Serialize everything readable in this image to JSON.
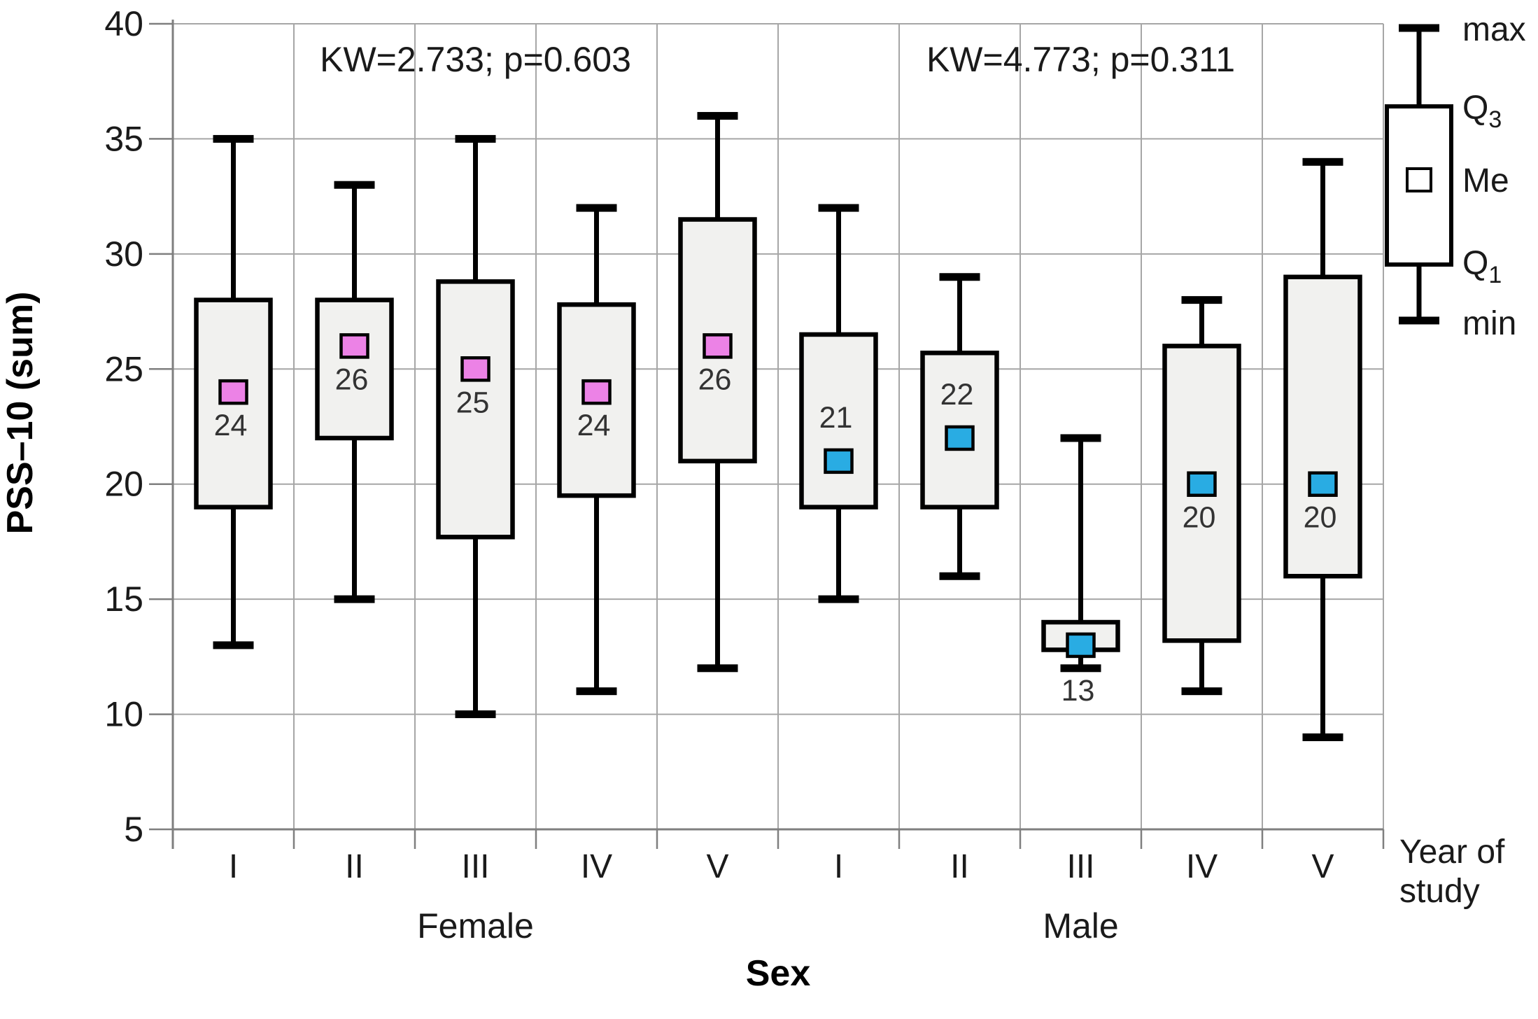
{
  "figure": {
    "y_axis": {
      "label": "PSS–10 (sum)",
      "ticks": [
        40,
        35,
        30,
        25,
        20,
        15,
        10,
        5
      ],
      "min": 5,
      "max": 40
    },
    "x_axis": {
      "title": "Sex",
      "right_label_line1": "Year of",
      "right_label_line2": "study",
      "year_ticks": [
        "I",
        "II",
        "III",
        "IV",
        "V"
      ]
    },
    "legend": {
      "items": [
        {
          "text": "max",
          "sub": ""
        },
        {
          "text": "Q",
          "sub": "3"
        },
        {
          "text": "Me",
          "sub": ""
        },
        {
          "text": "Q",
          "sub": "1"
        },
        {
          "text": "min",
          "sub": ""
        }
      ]
    },
    "colors": {
      "female_marker": "#EC82E6",
      "male_marker": "#29ACE3",
      "box_fill": "#F1F1EF",
      "legend_box_fill": "#FFFFFF",
      "grid": "#A6A6A6",
      "axis": "#7F7F7F",
      "ink": "#1A1A1A",
      "median_label": "#333333"
    }
  },
  "chart_data": {
    "type": "box",
    "title": "",
    "xlabel": "Sex",
    "ylabel": "PSS–10 (sum)",
    "ylim": [
      5,
      40
    ],
    "grid": true,
    "legend_position": "right",
    "categories": [
      "Female I",
      "Female II",
      "Female III",
      "Female IV",
      "Female V",
      "Male I",
      "Male II",
      "Male III",
      "Male IV",
      "Male V"
    ],
    "groups": [
      {
        "name": "Female",
        "annotation": "KW=2.733; p=0.603",
        "columns": [
          0,
          1,
          2,
          3,
          4
        ]
      },
      {
        "name": "Male",
        "annotation": "KW=4.773; p=0.311",
        "columns": [
          5,
          6,
          7,
          8,
          9
        ]
      }
    ],
    "series": [
      {
        "group": "Female",
        "year": "I",
        "min": 13,
        "q1": 19,
        "median": 24,
        "q3": 28,
        "max": 35,
        "median_label": "24",
        "label_pos": "below"
      },
      {
        "group": "Female",
        "year": "II",
        "min": 15,
        "q1": 22,
        "median": 26,
        "q3": 28,
        "max": 33,
        "median_label": "26",
        "label_pos": "below"
      },
      {
        "group": "Female",
        "year": "III",
        "min": 10,
        "q1": 17.7,
        "median": 25,
        "q3": 28.8,
        "max": 35,
        "median_label": "25",
        "label_pos": "below"
      },
      {
        "group": "Female",
        "year": "IV",
        "min": 11,
        "q1": 19.5,
        "median": 24,
        "q3": 27.8,
        "max": 32,
        "median_label": "24",
        "label_pos": "below"
      },
      {
        "group": "Female",
        "year": "V",
        "min": 12,
        "q1": 21,
        "median": 26,
        "q3": 31.5,
        "max": 36,
        "median_label": "26",
        "label_pos": "below"
      },
      {
        "group": "Male",
        "year": "I",
        "min": 15,
        "q1": 19,
        "median": 21,
        "q3": 26.5,
        "max": 32,
        "median_label": "21",
        "label_pos": "above"
      },
      {
        "group": "Male",
        "year": "II",
        "min": 16,
        "q1": 19,
        "median": 22,
        "q3": 25.7,
        "max": 29,
        "median_label": "22",
        "label_pos": "above"
      },
      {
        "group": "Male",
        "year": "III",
        "min": 12,
        "q1": 12.8,
        "median": 13,
        "q3": 14,
        "max": 22,
        "median_label": "13",
        "label_pos": "below_min"
      },
      {
        "group": "Male",
        "year": "IV",
        "min": 11,
        "q1": 13.2,
        "median": 20,
        "q3": 26,
        "max": 28,
        "median_label": "20",
        "label_pos": "below"
      },
      {
        "group": "Male",
        "year": "V",
        "min": 9,
        "q1": 16,
        "median": 20,
        "q3": 29,
        "max": 34,
        "median_label": "20",
        "label_pos": "below"
      }
    ]
  }
}
